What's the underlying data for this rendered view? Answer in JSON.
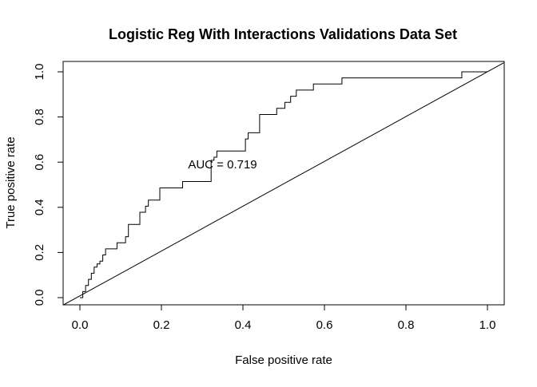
{
  "chart_data": {
    "type": "line",
    "title": "Logistic Reg With Interactions Validations Data Set",
    "xlabel": "False positive rate",
    "ylabel": "True positive rate",
    "xlim": [
      0,
      1
    ],
    "ylim": [
      0,
      1
    ],
    "x_ticks": [
      "0.0",
      "0.2",
      "0.4",
      "0.6",
      "0.8",
      "1.0"
    ],
    "y_ticks": [
      "0.0",
      "0.2",
      "0.4",
      "0.6",
      "0.8",
      "1.0"
    ],
    "annotation": {
      "text": "AUC = 0.719",
      "x": 0.35,
      "y": 0.59
    },
    "grid": false,
    "series": [
      {
        "type": "step",
        "points": [
          [
            0.0,
            0.0
          ],
          [
            0.007,
            0.0
          ],
          [
            0.007,
            0.027
          ],
          [
            0.014,
            0.027
          ],
          [
            0.014,
            0.054
          ],
          [
            0.021,
            0.054
          ],
          [
            0.021,
            0.081
          ],
          [
            0.028,
            0.081
          ],
          [
            0.028,
            0.108
          ],
          [
            0.035,
            0.108
          ],
          [
            0.035,
            0.135
          ],
          [
            0.042,
            0.135
          ],
          [
            0.042,
            0.149
          ],
          [
            0.049,
            0.149
          ],
          [
            0.049,
            0.162
          ],
          [
            0.056,
            0.162
          ],
          [
            0.056,
            0.189
          ],
          [
            0.063,
            0.189
          ],
          [
            0.063,
            0.216
          ],
          [
            0.091,
            0.216
          ],
          [
            0.091,
            0.243
          ],
          [
            0.112,
            0.243
          ],
          [
            0.112,
            0.27
          ],
          [
            0.119,
            0.27
          ],
          [
            0.119,
            0.324
          ],
          [
            0.147,
            0.324
          ],
          [
            0.147,
            0.378
          ],
          [
            0.161,
            0.378
          ],
          [
            0.161,
            0.405
          ],
          [
            0.168,
            0.405
          ],
          [
            0.168,
            0.432
          ],
          [
            0.196,
            0.432
          ],
          [
            0.196,
            0.486
          ],
          [
            0.252,
            0.486
          ],
          [
            0.252,
            0.514
          ],
          [
            0.322,
            0.514
          ],
          [
            0.322,
            0.608
          ],
          [
            0.329,
            0.608
          ],
          [
            0.329,
            0.622
          ],
          [
            0.336,
            0.622
          ],
          [
            0.336,
            0.649
          ],
          [
            0.406,
            0.649
          ],
          [
            0.406,
            0.703
          ],
          [
            0.413,
            0.703
          ],
          [
            0.413,
            0.73
          ],
          [
            0.441,
            0.73
          ],
          [
            0.441,
            0.811
          ],
          [
            0.483,
            0.811
          ],
          [
            0.483,
            0.838
          ],
          [
            0.503,
            0.838
          ],
          [
            0.503,
            0.865
          ],
          [
            0.517,
            0.865
          ],
          [
            0.517,
            0.892
          ],
          [
            0.531,
            0.892
          ],
          [
            0.531,
            0.919
          ],
          [
            0.573,
            0.919
          ],
          [
            0.573,
            0.946
          ],
          [
            0.643,
            0.946
          ],
          [
            0.643,
            0.973
          ],
          [
            0.937,
            0.973
          ],
          [
            0.937,
            1.0
          ],
          [
            1.0,
            1.0
          ]
        ]
      },
      {
        "type": "reference",
        "points": [
          [
            -0.04,
            -0.04
          ],
          [
            1.04,
            1.04
          ]
        ]
      }
    ]
  }
}
